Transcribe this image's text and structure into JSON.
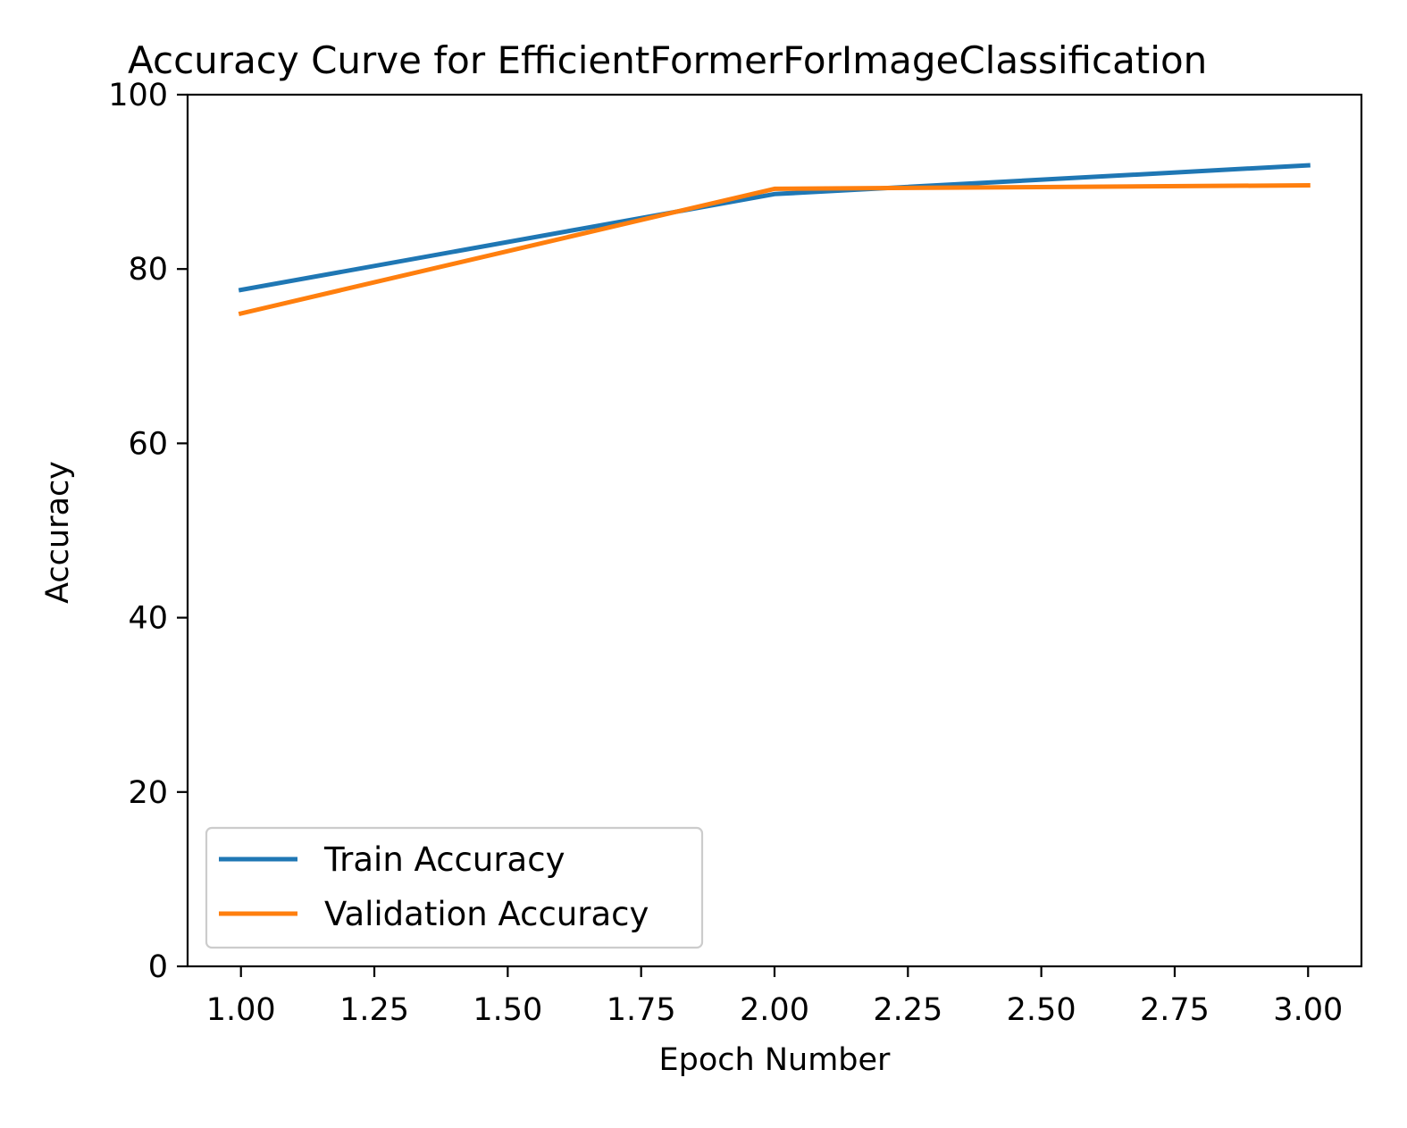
{
  "chart_data": {
    "type": "line",
    "title": "Accuracy Curve for  EfficientFormerForImageClassification",
    "xlabel": "Epoch Number",
    "ylabel": "Accuracy",
    "xlim": [
      0.9,
      3.1
    ],
    "ylim": [
      0,
      100
    ],
    "xticks": [
      "1.00",
      "1.25",
      "1.50",
      "1.75",
      "2.00",
      "2.25",
      "2.50",
      "2.75",
      "3.00"
    ],
    "yticks": [
      "0",
      "20",
      "40",
      "60",
      "80",
      "100"
    ],
    "grid": false,
    "legend_position": "lower-left",
    "x": [
      1,
      2,
      3
    ],
    "series": [
      {
        "name": "Train Accuracy",
        "color": "#1f77b4",
        "values": [
          77.6,
          88.6,
          91.9
        ]
      },
      {
        "name": "Validation Accuracy",
        "color": "#ff7f0e",
        "values": [
          74.9,
          89.2,
          89.6
        ]
      }
    ]
  }
}
